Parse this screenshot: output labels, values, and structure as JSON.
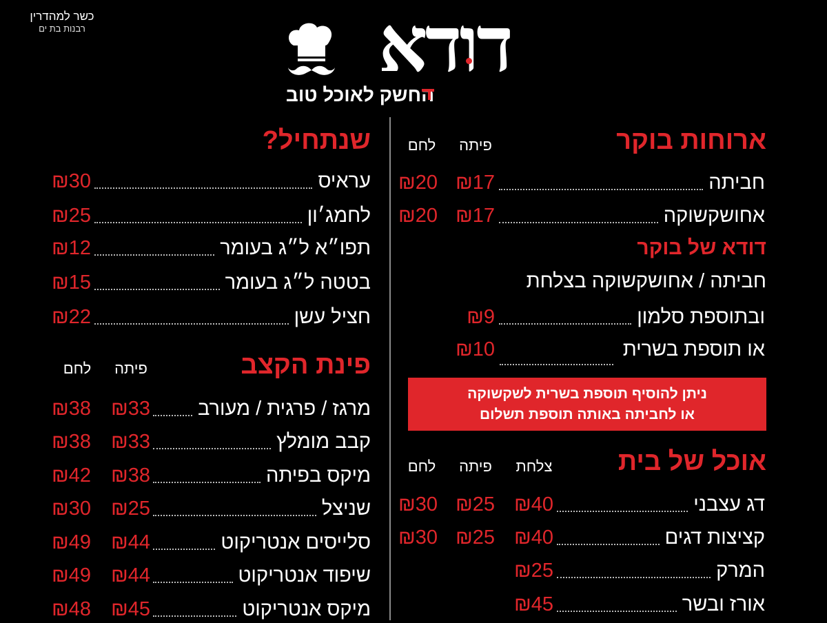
{
  "kosher": {
    "line1": "כשר למהדרין",
    "line2": "רבנות בת ים"
  },
  "logo": {
    "name": "דודא",
    "tagline": "החשק לאוכל טוב",
    "icon": "chef-hat-mustache-icon"
  },
  "colors": {
    "accent": "#e0262b",
    "background": "#000000",
    "text": "#ffffff"
  },
  "breakfast": {
    "title": "ארוחות בוקר",
    "columns": [
      "פיתה",
      "לחם"
    ],
    "items": [
      {
        "name": "חביתה",
        "prices": [
          "₪17",
          "₪20"
        ]
      },
      {
        "name": "אחושקשוקה",
        "prices": [
          "₪17",
          "₪20"
        ]
      }
    ],
    "dooda_title": "דודא של בוקר",
    "dooda_desc": "חביתה / אחושקשוקה בצלחת",
    "dooda_items": [
      {
        "name": "ובתוספת סלמון",
        "price": "₪9"
      },
      {
        "name": "או תוספת בשרית",
        "price": "₪10"
      }
    ],
    "note_line1": "ניתן להוסיף תוספת בשרית לשקשוקה",
    "note_line2": "או לחביתה באותה תוספת תשלום"
  },
  "home": {
    "title": "אוכל של בית",
    "columns": [
      "צלחת",
      "פיתה",
      "לחם"
    ],
    "items": [
      {
        "name": "דג עצבני",
        "prices": [
          "₪40",
          "₪25",
          "₪30"
        ]
      },
      {
        "name": "קציצות דגים",
        "prices": [
          "₪40",
          "₪25",
          "₪30"
        ]
      },
      {
        "name": "המרק",
        "prices": [
          "₪25"
        ]
      },
      {
        "name": "אורז ובשר",
        "prices": [
          "₪45"
        ]
      }
    ]
  },
  "starters": {
    "title": "שנתחיל?",
    "items": [
      {
        "name": "עראיס",
        "price": "₪30"
      },
      {
        "name": "לחמג׳ון",
        "price": "₪25"
      },
      {
        "name": "תפו״א ל״ג בעומר",
        "price": "₪12"
      },
      {
        "name": "בטטה ל״ג בעומר",
        "price": "₪15"
      },
      {
        "name": "חציל עשן",
        "price": "₪22"
      }
    ]
  },
  "butcher": {
    "title": "פינת הקצב",
    "columns": [
      "פיתה",
      "לחם"
    ],
    "items": [
      {
        "name": "מרגז / פרגית / מעורב",
        "prices": [
          "₪33",
          "₪38"
        ]
      },
      {
        "name": "קבב מומלץ",
        "prices": [
          "₪33",
          "₪38"
        ]
      },
      {
        "name": "מיקס בפיתה",
        "prices": [
          "₪38",
          "₪42"
        ]
      },
      {
        "name": "שניצל",
        "prices": [
          "₪25",
          "₪30"
        ]
      },
      {
        "name": "סלייסים אנטריקוט",
        "prices": [
          "₪44",
          "₪49"
        ]
      },
      {
        "name": "שיפוד אנטריקוט",
        "prices": [
          "₪44",
          "₪49"
        ]
      },
      {
        "name": "מיקס אנטריקוט",
        "prices": [
          "₪45",
          "₪48"
        ]
      }
    ]
  }
}
